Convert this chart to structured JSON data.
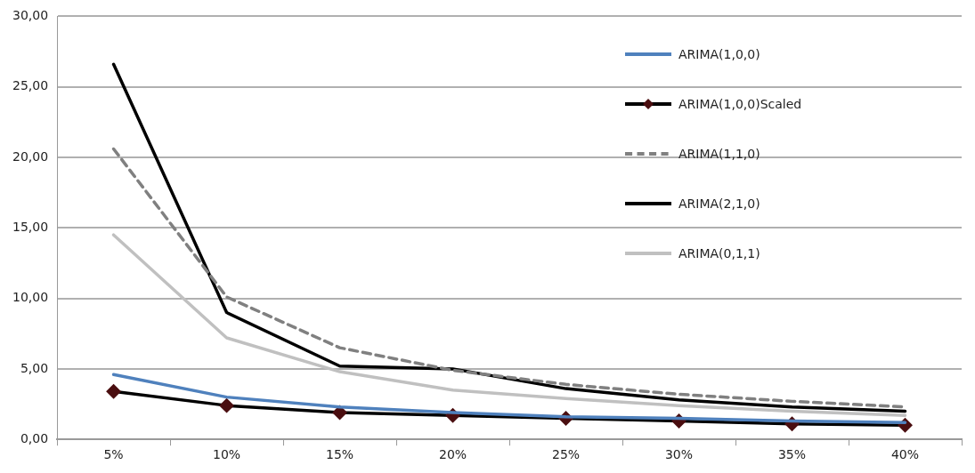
{
  "chart_data": {
    "type": "line",
    "categories": [
      "5%",
      "10%",
      "15%",
      "20%",
      "25%",
      "30%",
      "35%",
      "40%"
    ],
    "series": [
      {
        "name": "ARIMA(1,0,0)",
        "color": "#4f81bd",
        "line_style": "solid",
        "marker": "none",
        "values": [
          4.6,
          3.0,
          2.3,
          1.9,
          1.6,
          1.5,
          1.3,
          1.2
        ]
      },
      {
        "name": "ARIMA(1,0,0)Scaled",
        "color": "#000000",
        "line_style": "solid",
        "marker": "diamond",
        "values": [
          3.4,
          2.4,
          1.9,
          1.7,
          1.5,
          1.3,
          1.1,
          1.0
        ]
      },
      {
        "name": "ARIMA(1,1,0)",
        "color": "#808080",
        "line_style": "dashed",
        "marker": "none",
        "values": [
          20.6,
          10.1,
          6.5,
          4.9,
          3.9,
          3.2,
          2.7,
          2.3
        ]
      },
      {
        "name": "ARIMA(2,1,0)",
        "color": "#000000",
        "line_style": "solid",
        "marker": "none",
        "values": [
          26.6,
          9.0,
          5.2,
          5.0,
          3.6,
          2.8,
          2.3,
          2.0
        ]
      },
      {
        "name": "ARIMA(0,1,1)",
        "color": "#c0c0c0",
        "line_style": "solid",
        "marker": "none",
        "values": [
          14.5,
          7.2,
          4.8,
          3.5,
          2.9,
          2.4,
          2.0,
          1.7
        ]
      }
    ],
    "ylim": [
      0,
      30
    ],
    "yticks": [
      {
        "value": 0,
        "label": "0,00"
      },
      {
        "value": 5,
        "label": "5,00"
      },
      {
        "value": 10,
        "label": "10,00"
      },
      {
        "value": 15,
        "label": "15,00"
      },
      {
        "value": 20,
        "label": "20,00"
      },
      {
        "value": 25,
        "label": "25,00"
      },
      {
        "value": 30,
        "label": "30,00"
      }
    ],
    "grid": "y",
    "legend": "top right"
  }
}
